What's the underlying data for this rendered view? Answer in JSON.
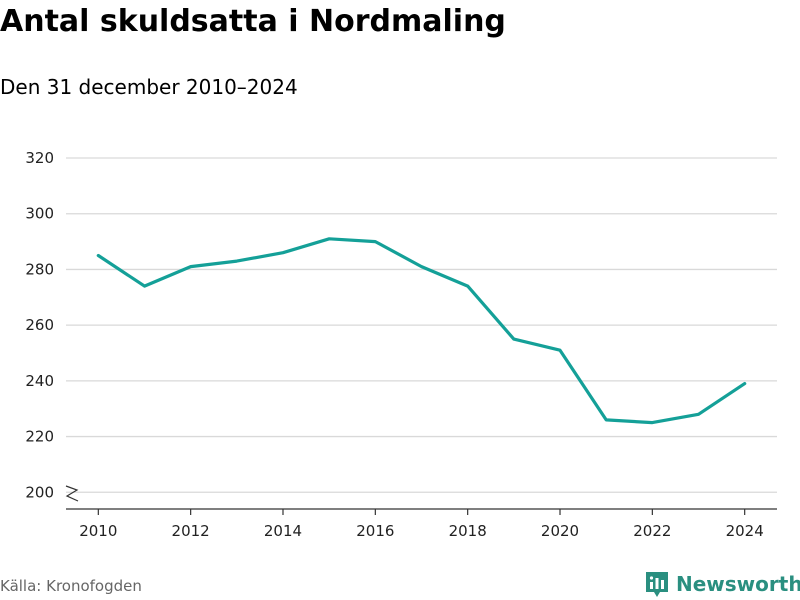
{
  "title": "Antal skuldsatta i Nordmaling",
  "subtitle": "Den 31 december 2010–2024",
  "source": "Källa: Kronofogden",
  "brand": {
    "name": "Newsworthy",
    "icon": "newsworthy-logo-icon",
    "color": "#2a8f80"
  },
  "chart_data": {
    "type": "line",
    "title": "Antal skuldsatta i Nordmaling",
    "subtitle": "Den 31 december 2010–2024",
    "xlabel": "",
    "ylabel": "",
    "x": [
      2010,
      2011,
      2012,
      2013,
      2014,
      2015,
      2016,
      2017,
      2018,
      2019,
      2020,
      2021,
      2022,
      2023,
      2024
    ],
    "series": [
      {
        "values": [
          285,
          274,
          281,
          283,
          286,
          291,
          290,
          281,
          274,
          255,
          251,
          226,
          225,
          228,
          239
        ],
        "color": "#14a098"
      }
    ],
    "xticks": [
      2010,
      2012,
      2014,
      2016,
      2018,
      2020,
      2022,
      2024
    ],
    "yticks": [
      200,
      220,
      240,
      260,
      280,
      300,
      320
    ],
    "xlim": [
      2009.3,
      2024.7
    ],
    "ylim": [
      194,
      320
    ],
    "axis_break": true,
    "grid": true,
    "legend": "none"
  }
}
